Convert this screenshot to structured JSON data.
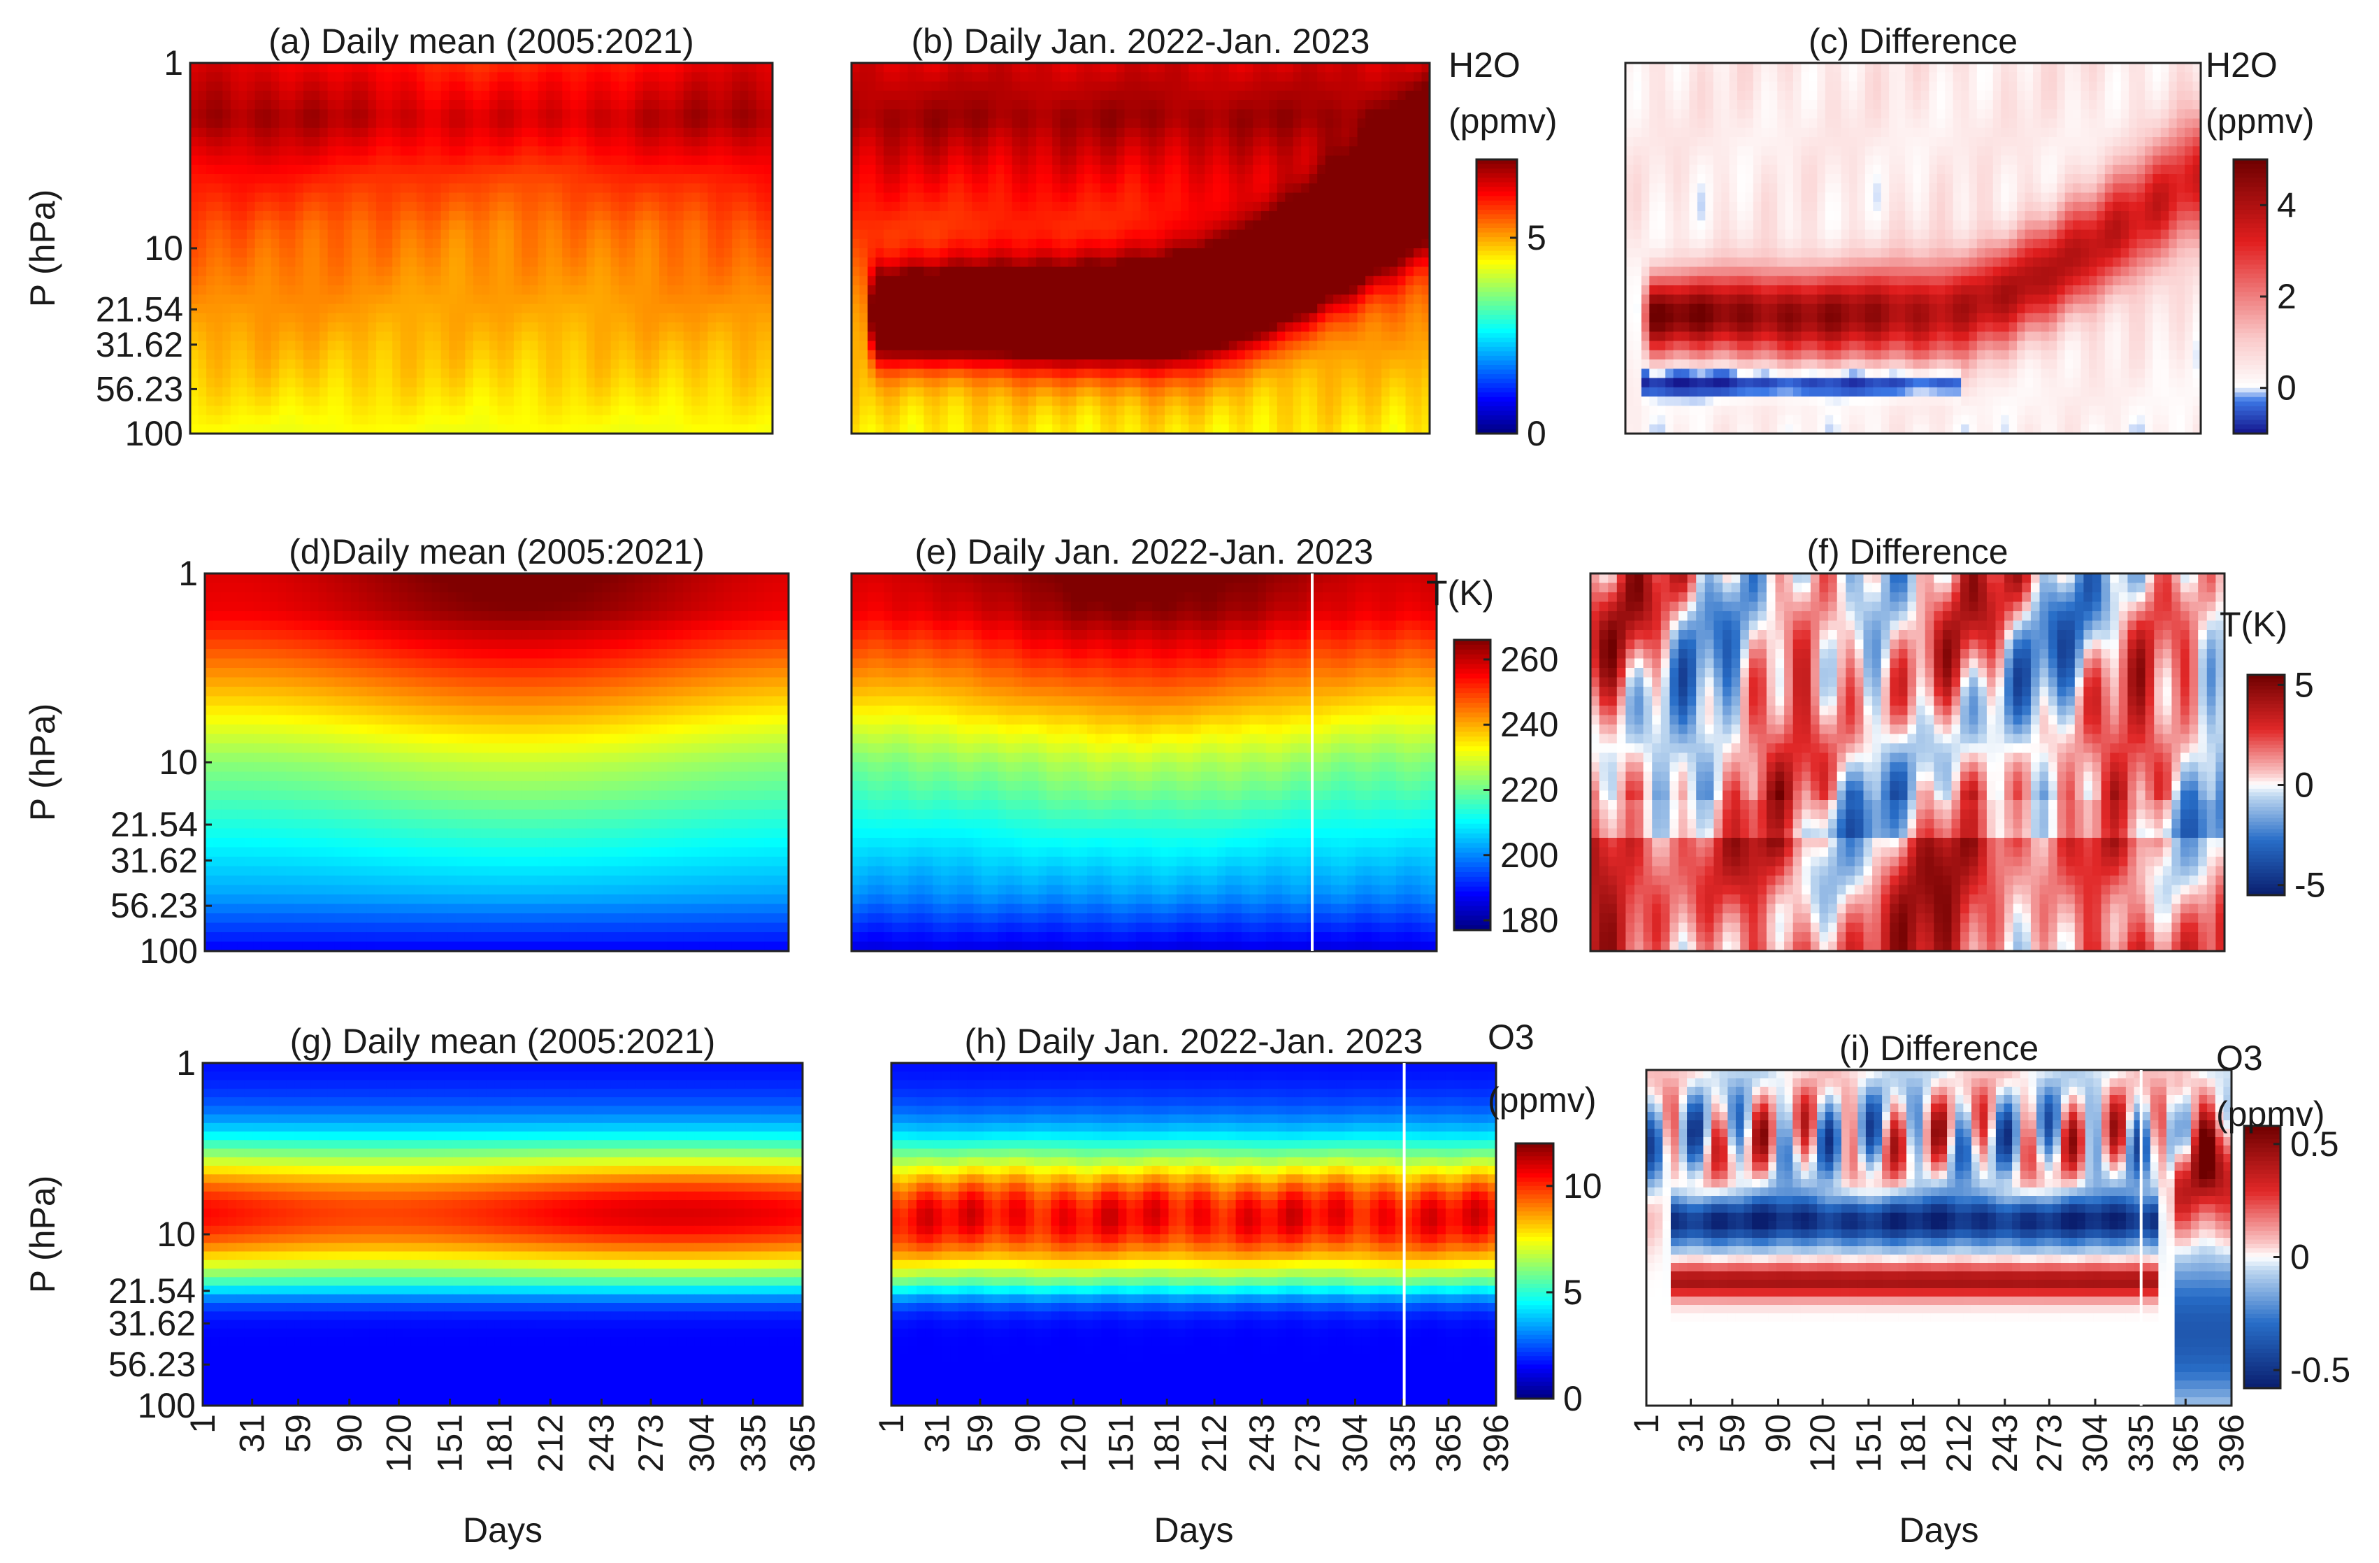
{
  "figure": {
    "ylabel": "P (hPa)",
    "xlabel": "Days"
  },
  "chart_data": [
    {
      "id": "a",
      "type": "heatmap",
      "variable": "H2O",
      "title": "(a) Daily mean (2005:2021)",
      "x_range": [
        1,
        365
      ],
      "yticks": [
        "1",
        "10",
        "21.54",
        "31.62",
        "56.23",
        "100"
      ],
      "clim": [
        0,
        7
      ],
      "profile": "h2o_clim"
    },
    {
      "id": "b",
      "type": "heatmap",
      "variable": "H2O",
      "title": "(b) Daily Jan. 2022-Jan. 2023",
      "x_range": [
        1,
        396
      ],
      "clim": [
        0,
        7
      ],
      "profile": "h2o_2022"
    },
    {
      "id": "c",
      "type": "heatmap",
      "variable": "H2O anomaly",
      "title": "(c) Difference",
      "x_range": [
        1,
        396
      ],
      "clim": [
        -1,
        5
      ],
      "profile": "h2o_diff"
    },
    {
      "id": "d",
      "type": "heatmap",
      "variable": "T",
      "title": "(d)Daily mean (2005:2021)",
      "x_range": [
        1,
        365
      ],
      "yticks": [
        "1",
        "10",
        "21.54",
        "31.62",
        "56.23",
        "100"
      ],
      "clim": [
        180,
        265
      ],
      "profile": "t_clim"
    },
    {
      "id": "e",
      "type": "heatmap",
      "variable": "T",
      "title": "(e) Daily Jan. 2022-Jan. 2023",
      "x_range": [
        1,
        396
      ],
      "clim": [
        180,
        265
      ],
      "profile": "t_2022"
    },
    {
      "id": "f",
      "type": "heatmap",
      "variable": "T anomaly",
      "title": "(f) Difference",
      "x_range": [
        1,
        396
      ],
      "clim": [
        -6,
        5
      ],
      "profile": "t_diff"
    },
    {
      "id": "g",
      "type": "heatmap",
      "variable": "O3",
      "title": "(g) Daily mean (2005:2021)",
      "x_range": [
        1,
        365
      ],
      "yticks": [
        "1",
        "10",
        "21.54",
        "31.62",
        "56.23",
        "100"
      ],
      "clim": [
        0,
        12
      ],
      "xticks": [
        "1",
        "31",
        "59",
        "90",
        "120",
        "151",
        "181",
        "212",
        "243",
        "273",
        "304",
        "335",
        "365"
      ],
      "xlabel": "Days",
      "profile": "o3_clim"
    },
    {
      "id": "h",
      "type": "heatmap",
      "variable": "O3",
      "title": "(h) Daily Jan. 2022-Jan. 2023",
      "x_range": [
        1,
        396
      ],
      "clim": [
        0,
        12
      ],
      "xticks": [
        "1",
        "31",
        "59",
        "90",
        "120",
        "151",
        "181",
        "212",
        "243",
        "273",
        "304",
        "335",
        "365",
        "396"
      ],
      "xlabel": "Days",
      "profile": "o3_2022"
    },
    {
      "id": "i",
      "type": "heatmap",
      "variable": "O3 anomaly",
      "title": "(i) Difference",
      "x_range": [
        1,
        396
      ],
      "clim": [
        -0.55,
        0.55
      ],
      "xticks": [
        "1",
        "31",
        "59",
        "90",
        "120",
        "151",
        "181",
        "212",
        "243",
        "273",
        "304",
        "335",
        "365",
        "396"
      ],
      "xlabel": "Days",
      "profile": "o3_diff"
    }
  ],
  "colorbars": [
    {
      "id": "h2o",
      "title_lines": [
        "H2O",
        "(ppmv)"
      ],
      "ticks": [
        "0",
        "5"
      ],
      "tick_values": [
        0,
        5
      ],
      "range": [
        0,
        7
      ],
      "cmap": "jet"
    },
    {
      "id": "h2o_diff",
      "title_lines": [
        "H2O",
        "(ppmv)"
      ],
      "ticks": [
        "0",
        "2",
        "4"
      ],
      "tick_values": [
        0,
        2,
        4
      ],
      "range": [
        -1,
        5
      ],
      "cmap": "wr"
    },
    {
      "id": "t",
      "title_lines": [
        "T(K)"
      ],
      "ticks": [
        "180",
        "200",
        "220",
        "240",
        "260"
      ],
      "tick_values": [
        180,
        200,
        220,
        240,
        260
      ],
      "range": [
        177,
        266
      ],
      "cmap": "jet"
    },
    {
      "id": "t_diff",
      "title_lines": [
        "T(K)"
      ],
      "ticks": [
        "-5",
        "0",
        "5"
      ],
      "tick_values": [
        -5,
        0,
        5
      ],
      "range": [
        -5.5,
        5.5
      ],
      "cmap": "bwr"
    },
    {
      "id": "o3",
      "title_lines": [
        "O3",
        "(ppmv)"
      ],
      "ticks": [
        "0",
        "5",
        "10"
      ],
      "tick_values": [
        0,
        5,
        10
      ],
      "range": [
        0,
        12
      ],
      "cmap": "jet"
    },
    {
      "id": "o3_diff",
      "title_lines": [
        "O3",
        "(ppmv)"
      ],
      "ticks": [
        "-0.5",
        "0",
        "0.5"
      ],
      "tick_values": [
        -0.5,
        0,
        0.5
      ],
      "range": [
        -0.58,
        0.58
      ],
      "cmap": "bwr"
    }
  ]
}
